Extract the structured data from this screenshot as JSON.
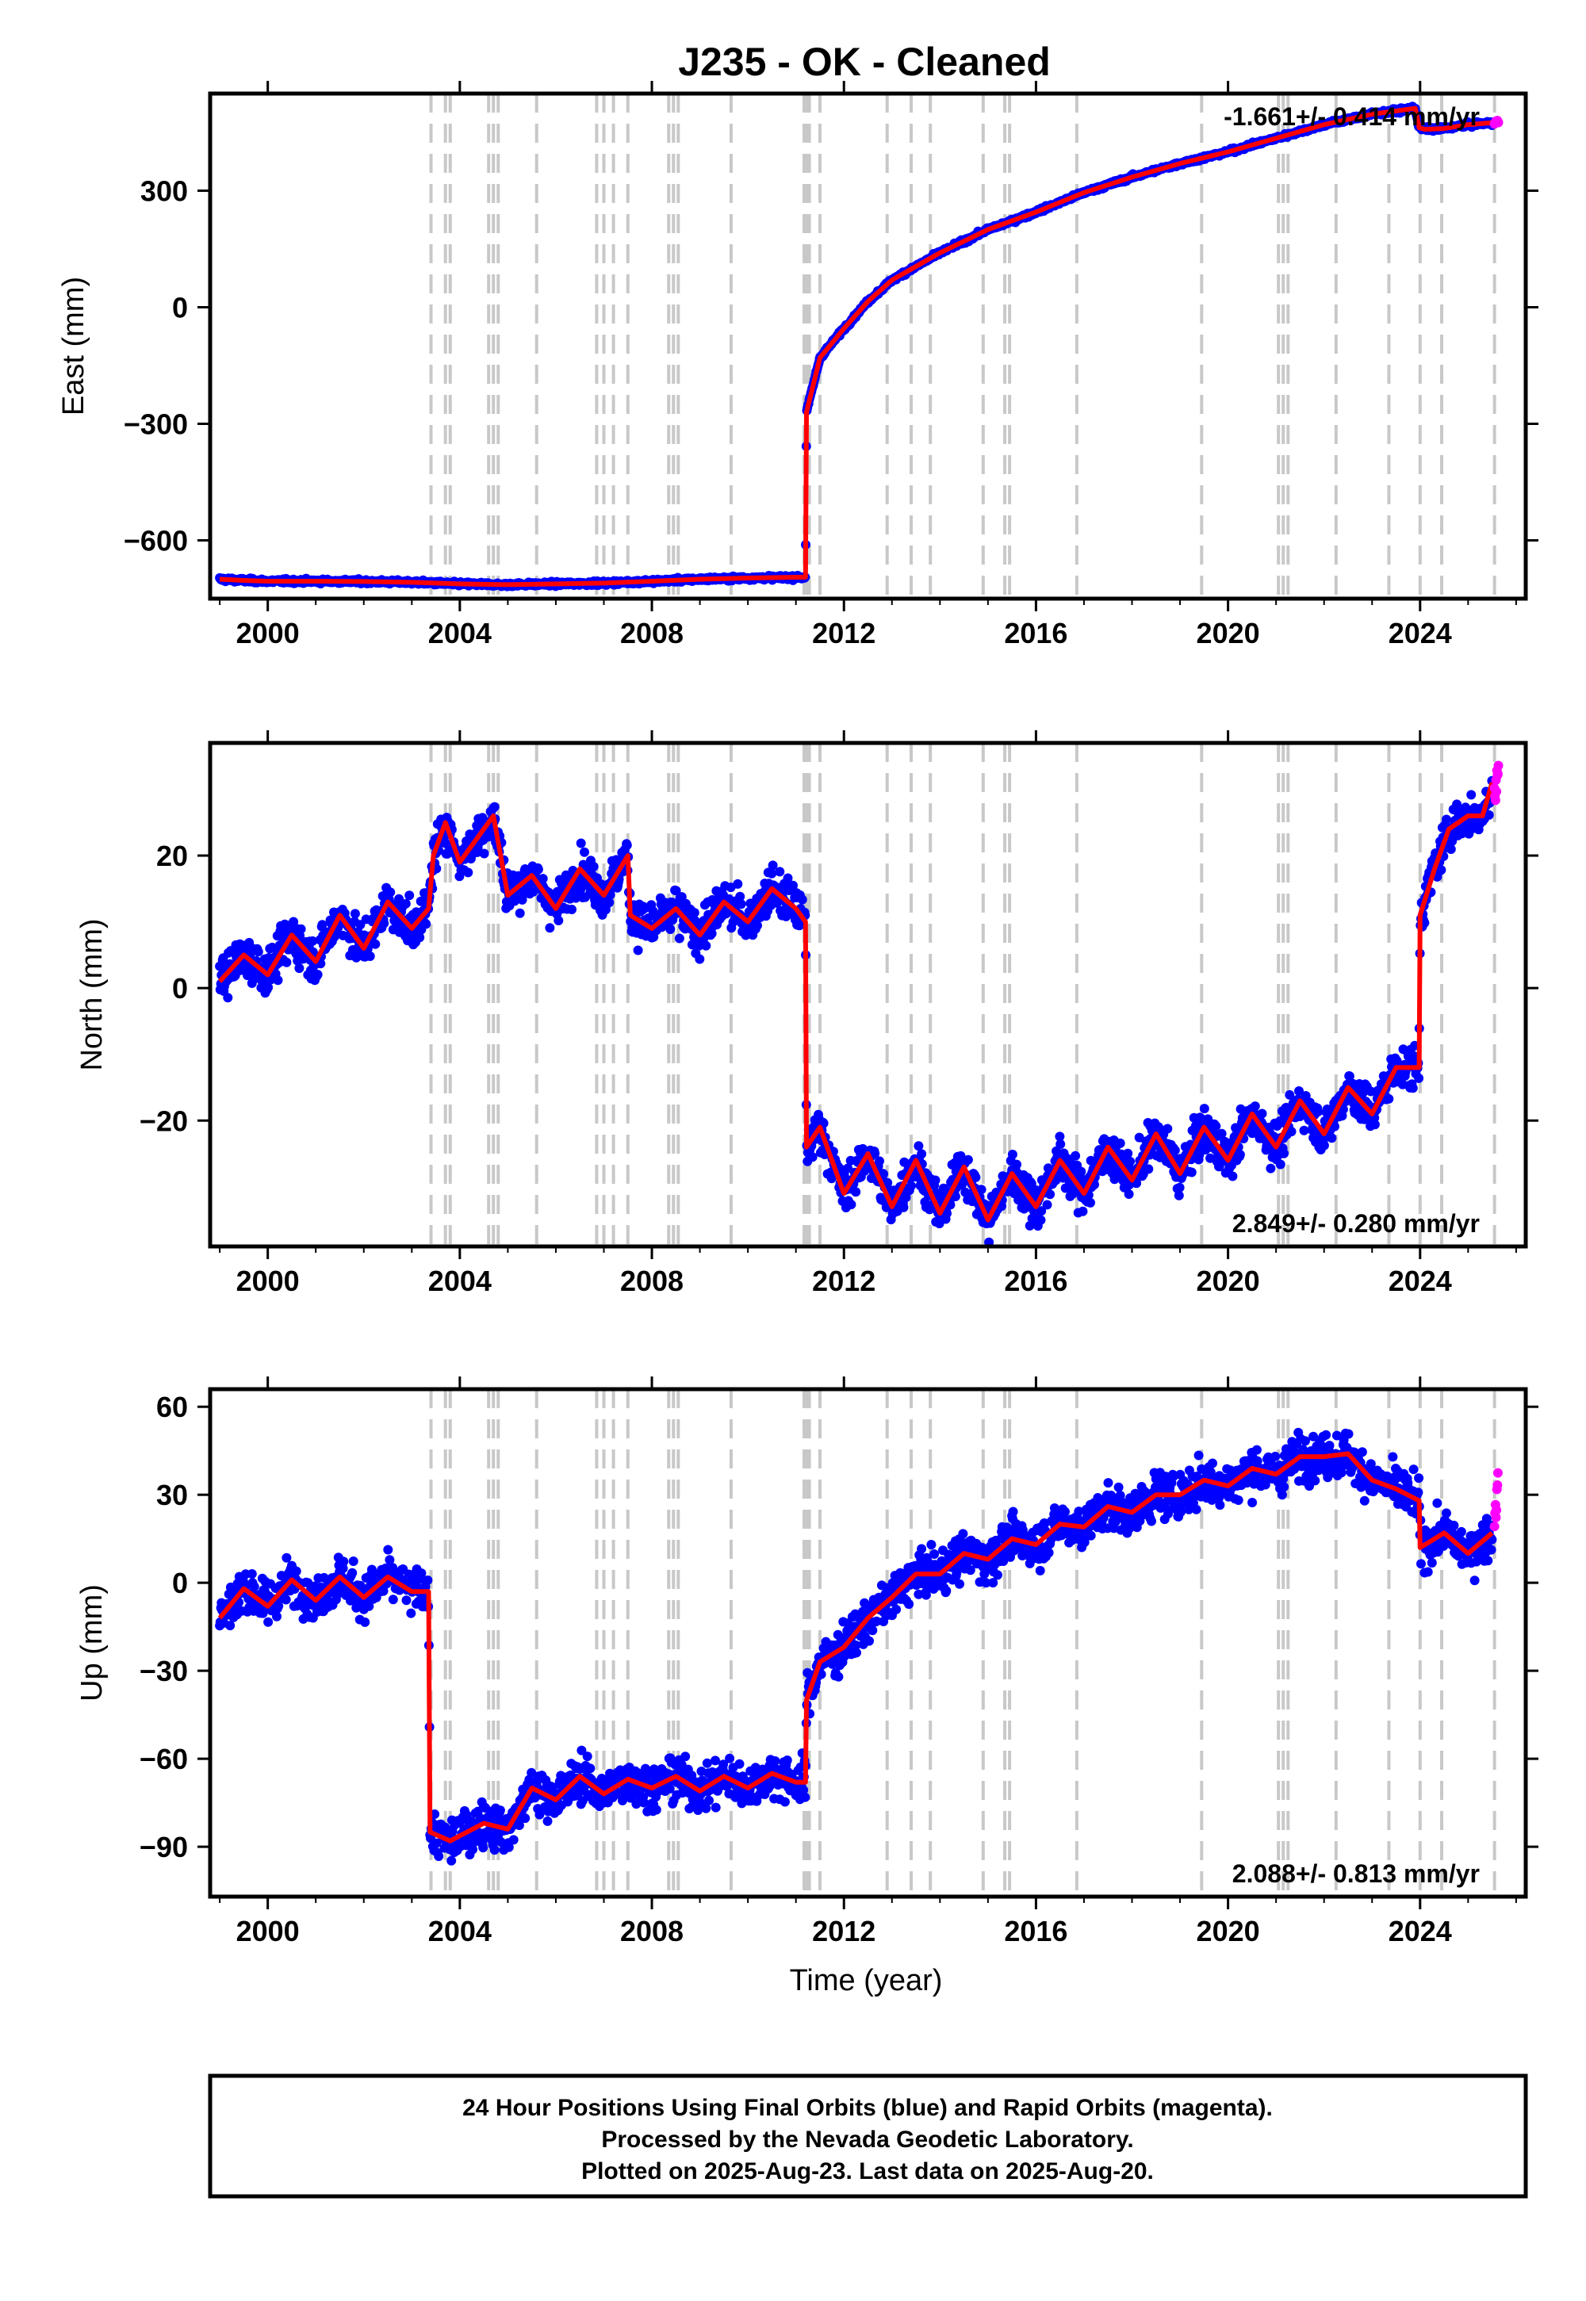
{
  "title": "J235  - OK - Cleaned",
  "colors": {
    "final_orbits": "#0000ff",
    "rapid_orbits": "#ff00ff",
    "model": "#ff0000",
    "event_lines": "#c8c8c8",
    "frame": "#000000"
  },
  "x_axis": {
    "label": "Time (year)",
    "ticks": [
      "2000",
      "2004",
      "2008",
      "2012",
      "2016",
      "2020",
      "2024"
    ]
  },
  "footer": {
    "line1": "24 Hour Positions Using Final Orbits (blue) and Rapid Orbits (magenta).",
    "line2": "Processed by the Nevada Geodetic Laboratory.",
    "line3": "Plotted on 2025-Aug-23. Last data on 2025-Aug-20."
  },
  "chart_data": [
    {
      "type": "scatter",
      "ylabel": "East (mm)",
      "rate_text": "-1.661+/- 0.414 mm/yr",
      "rate_position": "top-right",
      "xlim": [
        1998.8,
        2026.2
      ],
      "ylim": [
        -750,
        550
      ],
      "y_ticks": [
        -600,
        -300,
        0,
        300
      ],
      "y_tick_labels": [
        "−600",
        "−300",
        "0",
        "300"
      ],
      "x_ticks": [
        2000,
        2004,
        2008,
        2012,
        2016,
        2020,
        2024
      ],
      "event_lines": [
        2003.4,
        2003.7,
        2003.8,
        2004.6,
        2004.7,
        2004.8,
        2005.6,
        2006.85,
        2007.0,
        2007.2,
        2007.5,
        2008.35,
        2008.45,
        2008.55,
        2009.65,
        2011.17,
        2011.22,
        2011.28,
        2011.5,
        2012.9,
        2013.4,
        2013.8,
        2014.9,
        2015.35,
        2015.45,
        2016.85,
        2019.45,
        2021.05,
        2021.15,
        2021.25,
        2022.25,
        2023.35,
        2024.0,
        2024.45,
        2025.55
      ],
      "series": [
        {
          "name": "Final Orbits",
          "color": "#0000ff",
          "x": [
            1999.0,
            1999.5,
            2000.0,
            2001.0,
            2002.0,
            2003.0,
            2004.0,
            2005.0,
            2006.0,
            2007.0,
            2008.0,
            2009.0,
            2010.0,
            2011.0,
            2011.2,
            2011.22,
            2011.5,
            2012.0,
            2012.5,
            2013.0,
            2014.0,
            2015.0,
            2016.0,
            2017.0,
            2018.0,
            2019.0,
            2020.0,
            2021.0,
            2022.0,
            2023.0,
            2023.9,
            2023.98,
            2024.1,
            2024.5,
            2025.0,
            2025.5
          ],
          "y": [
            -700,
            -703,
            -705,
            -705,
            -706,
            -708,
            -712,
            -714,
            -712,
            -710,
            -705,
            -700,
            -697,
            -695,
            -695,
            -270,
            -130,
            -55,
            15,
            70,
            140,
            200,
            245,
            295,
            335,
            370,
            400,
            435,
            470,
            497,
            512,
            462,
            458,
            460,
            470,
            475
          ]
        },
        {
          "name": "Rapid Orbits",
          "color": "#ff00ff",
          "x": [
            2025.55,
            2025.6,
            2025.63
          ],
          "y": [
            475,
            478,
            476
          ]
        }
      ]
    },
    {
      "type": "scatter",
      "ylabel": "North (mm)",
      "rate_text": "2.849+/- 0.280 mm/yr",
      "rate_position": "bottom-right",
      "xlim": [
        1998.8,
        2026.2
      ],
      "ylim": [
        -39,
        37
      ],
      "y_ticks": [
        -20,
        0,
        20
      ],
      "y_tick_labels": [
        "−20",
        "0",
        "20"
      ],
      "x_ticks": [
        2000,
        2004,
        2008,
        2012,
        2016,
        2020,
        2024
      ],
      "event_lines": [
        2003.4,
        2003.7,
        2003.8,
        2004.6,
        2004.7,
        2004.8,
        2005.6,
        2006.85,
        2007.0,
        2007.2,
        2007.5,
        2008.35,
        2008.45,
        2008.55,
        2009.65,
        2011.17,
        2011.22,
        2011.28,
        2011.5,
        2012.9,
        2013.4,
        2013.8,
        2014.9,
        2015.35,
        2015.45,
        2016.85,
        2019.45,
        2021.05,
        2021.15,
        2021.25,
        2022.25,
        2023.35,
        2024.0,
        2024.45,
        2025.55
      ],
      "series": [
        {
          "name": "Final Orbits",
          "color": "#0000ff",
          "x": [
            1999.0,
            1999.5,
            2000.0,
            2000.5,
            2001.0,
            2001.5,
            2002.0,
            2002.5,
            2003.0,
            2003.35,
            2003.45,
            2003.7,
            2004.0,
            2004.7,
            2005.0,
            2005.5,
            2006.0,
            2006.5,
            2007.0,
            2007.5,
            2007.55,
            2008.0,
            2008.5,
            2009.0,
            2009.5,
            2010.0,
            2010.5,
            2011.0,
            2011.2,
            2011.22,
            2011.5,
            2012.0,
            2012.5,
            2013.0,
            2013.5,
            2014.0,
            2014.5,
            2015.0,
            2015.5,
            2016.0,
            2016.5,
            2017.0,
            2017.5,
            2018.0,
            2018.5,
            2019.0,
            2019.5,
            2020.0,
            2020.5,
            2021.0,
            2021.5,
            2022.0,
            2022.5,
            2023.0,
            2023.5,
            2023.98,
            2024.0,
            2024.3,
            2024.6,
            2025.0,
            2025.3,
            2025.5
          ],
          "y": [
            1,
            5,
            2,
            8,
            4,
            11,
            6,
            13,
            9,
            12,
            20,
            25,
            19,
            26,
            14,
            17,
            12,
            18,
            14,
            20,
            11,
            9,
            12,
            8,
            13,
            10,
            15,
            12,
            10,
            -24,
            -21,
            -31,
            -25,
            -33,
            -26,
            -34,
            -27,
            -35,
            -28,
            -33,
            -26,
            -31,
            -24,
            -29,
            -22,
            -28,
            -21,
            -26,
            -19,
            -24,
            -17,
            -22,
            -15,
            -19,
            -12,
            -12,
            11,
            18,
            24,
            26,
            26,
            31
          ]
        },
        {
          "name": "Rapid Orbits",
          "color": "#ff00ff",
          "x": [
            2025.55,
            2025.6,
            2025.63
          ],
          "y": [
            30,
            32,
            33
          ]
        }
      ]
    },
    {
      "type": "scatter",
      "ylabel": "Up (mm)",
      "rate_text": "2.088+/- 0.813 mm/yr",
      "rate_position": "bottom-right",
      "xlim": [
        1998.8,
        2026.2
      ],
      "ylim": [
        -107,
        66
      ],
      "y_ticks": [
        -90,
        -60,
        -30,
        0,
        30,
        60
      ],
      "y_tick_labels": [
        "−90",
        "−60",
        "−30",
        "0",
        "30",
        "60"
      ],
      "x_ticks": [
        2000,
        2004,
        2008,
        2012,
        2016,
        2020,
        2024
      ],
      "event_lines": [
        2003.4,
        2003.7,
        2003.8,
        2004.6,
        2004.7,
        2004.8,
        2005.6,
        2006.85,
        2007.0,
        2007.2,
        2007.5,
        2008.35,
        2008.45,
        2008.55,
        2009.65,
        2011.17,
        2011.22,
        2011.28,
        2011.5,
        2012.9,
        2013.4,
        2013.8,
        2014.9,
        2015.35,
        2015.45,
        2016.85,
        2019.45,
        2021.05,
        2021.15,
        2021.25,
        2022.25,
        2023.35,
        2024.0,
        2024.45,
        2025.55
      ],
      "series": [
        {
          "name": "Final Orbits",
          "color": "#0000ff",
          "x": [
            1999.0,
            1999.5,
            2000.0,
            2000.5,
            2001.0,
            2001.5,
            2002.0,
            2002.5,
            2003.0,
            2003.35,
            2003.38,
            2003.8,
            2004.5,
            2005.0,
            2005.5,
            2006.0,
            2006.5,
            2007.0,
            2007.5,
            2008.0,
            2008.5,
            2009.0,
            2009.5,
            2010.0,
            2010.5,
            2011.0,
            2011.2,
            2011.22,
            2011.5,
            2012.0,
            2012.5,
            2013.0,
            2013.5,
            2014.0,
            2014.5,
            2015.0,
            2015.5,
            2016.0,
            2016.5,
            2017.0,
            2017.5,
            2018.0,
            2018.5,
            2019.0,
            2019.5,
            2020.0,
            2020.5,
            2021.0,
            2021.5,
            2022.0,
            2022.5,
            2023.0,
            2023.5,
            2023.98,
            2024.0,
            2024.5,
            2025.0,
            2025.5
          ],
          "y": [
            -12,
            -2,
            -8,
            1,
            -6,
            2,
            -5,
            2,
            -3,
            -3,
            -85,
            -88,
            -82,
            -84,
            -70,
            -74,
            -66,
            -72,
            -67,
            -70,
            -66,
            -71,
            -66,
            -70,
            -65,
            -68,
            -68,
            -40,
            -27,
            -22,
            -12,
            -5,
            3,
            3,
            10,
            8,
            15,
            13,
            20,
            19,
            26,
            24,
            30,
            30,
            35,
            33,
            39,
            37,
            43,
            43,
            44,
            35,
            32,
            28,
            12,
            17,
            10,
            17
          ]
        },
        {
          "name": "Rapid Orbits",
          "color": "#ff00ff",
          "x": [
            2025.55,
            2025.58,
            2025.6,
            2025.62
          ],
          "y": [
            20,
            26,
            33,
            39
          ]
        }
      ]
    }
  ]
}
